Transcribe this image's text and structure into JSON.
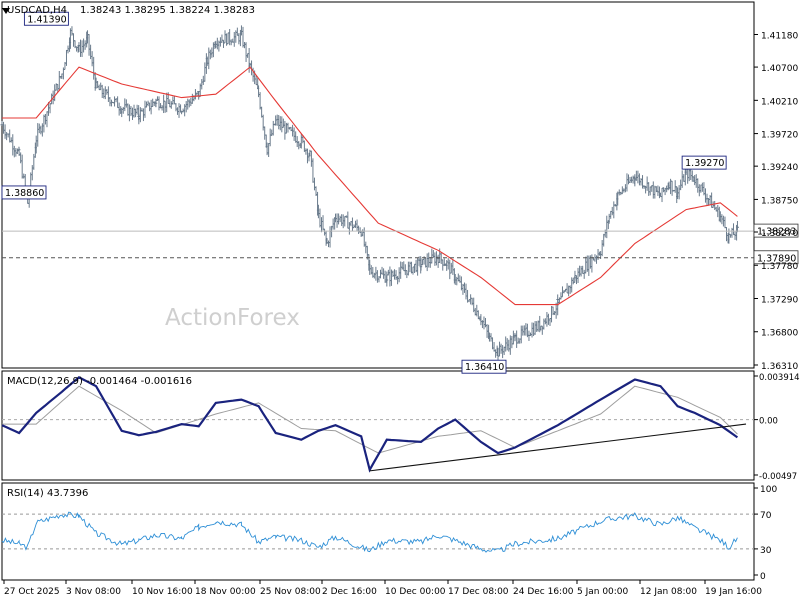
{
  "chart_data": [
    {
      "type": "candlestick-ohlc",
      "title": "USDCAD,H4",
      "ohlc_readout": {
        "open": "1.38243",
        "high": "1.38295",
        "low": "1.38224",
        "close": "1.38283"
      },
      "watermark": "ActionForex",
      "ylim": [
        1.3631,
        1.416
      ],
      "yticks": [
        "1.41180",
        "1.40700",
        "1.40210",
        "1.39720",
        "1.39240",
        "1.38750",
        "1.38270",
        "1.37780",
        "1.37290",
        "1.36800",
        "1.36310"
      ],
      "xticks": [
        "27 Oct 2025",
        "3 Nov 08:00",
        "10 Nov 16:00",
        "18 Nov 00:00",
        "25 Nov 08:00",
        "2 Dec 16:00",
        "10 Dec 00:00",
        "17 Dec 08:00",
        "24 Dec 16:00",
        "5 Jan 00:00",
        "12 Jan 08:00",
        "19 Jan 16:00"
      ],
      "series_keypoints": [
        [
          "27 Oct",
          1.3985
        ],
        [
          "29 Oct",
          1.394
        ],
        [
          "30 Oct",
          1.387
        ],
        [
          "31 Oct",
          1.3965
        ],
        [
          "3 Nov",
          1.406
        ],
        [
          "4 Nov",
          1.412
        ],
        [
          "5 Nov",
          1.4095
        ],
        [
          "6 Nov",
          1.411
        ],
        [
          "7 Nov",
          1.404
        ],
        [
          "10 Nov",
          1.401
        ],
        [
          "12 Nov",
          1.4
        ],
        [
          "14 Nov",
          1.402
        ],
        [
          "17 Nov",
          1.401
        ],
        [
          "19 Nov",
          1.403
        ],
        [
          "20 Nov",
          1.408
        ],
        [
          "21 Nov",
          1.411
        ],
        [
          "24 Nov",
          1.4115
        ],
        [
          "25 Nov",
          1.407
        ],
        [
          "26 Nov",
          1.403
        ],
        [
          "27 Nov",
          1.395
        ],
        [
          "28 Nov",
          1.399
        ],
        [
          "1 Dec",
          1.396
        ],
        [
          "2 Dec",
          1.394
        ],
        [
          "3 Dec",
          1.385
        ],
        [
          "4 Dec",
          1.381
        ],
        [
          "5 Dec",
          1.385
        ],
        [
          "8 Dec",
          1.383
        ],
        [
          "9 Dec",
          1.377
        ],
        [
          "11 Dec",
          1.376
        ],
        [
          "15 Dec",
          1.378
        ],
        [
          "17 Dec",
          1.379
        ],
        [
          "18 Dec",
          1.378
        ],
        [
          "19 Dec",
          1.376
        ],
        [
          "22 Dec",
          1.37
        ],
        [
          "23 Dec",
          1.367
        ],
        [
          "24 Dec",
          1.365
        ],
        [
          "26 Dec",
          1.367
        ],
        [
          "29 Dec",
          1.369
        ],
        [
          "31 Dec",
          1.372
        ],
        [
          "2 Jan",
          1.376
        ],
        [
          "5 Jan",
          1.38
        ],
        [
          "6 Jan",
          1.385
        ],
        [
          "7 Jan",
          1.388
        ],
        [
          "9 Jan",
          1.391
        ],
        [
          "12 Jan",
          1.388
        ],
        [
          "13 Jan",
          1.39
        ],
        [
          "14 Jan",
          1.3885
        ],
        [
          "15 Jan",
          1.3915
        ],
        [
          "16 Jan",
          1.3905
        ],
        [
          "19 Jan",
          1.385
        ],
        [
          "20 Jan",
          1.382
        ],
        [
          "21 Jan",
          1.3828
        ]
      ],
      "moving_average_keypoints": [
        [
          "27 Oct",
          1.3995
        ],
        [
          "31 Oct",
          1.3995
        ],
        [
          "5 Nov",
          1.407
        ],
        [
          "10 Nov",
          1.4045
        ],
        [
          "17 Nov",
          1.4025
        ],
        [
          "21 Nov",
          1.403
        ],
        [
          "25 Nov",
          1.407
        ],
        [
          "28 Nov",
          1.402
        ],
        [
          "3 Dec",
          1.394
        ],
        [
          "10 Dec",
          1.384
        ],
        [
          "17 Dec",
          1.38
        ],
        [
          "22 Dec",
          1.376
        ],
        [
          "26 Dec",
          1.372
        ],
        [
          "31 Dec",
          1.372
        ],
        [
          "5 Jan",
          1.376
        ],
        [
          "9 Jan",
          1.381
        ],
        [
          "15 Jan",
          1.386
        ],
        [
          "19 Jan",
          1.387
        ],
        [
          "21 Jan",
          1.385
        ]
      ],
      "price_labels": [
        {
          "label": "1.41390",
          "x": "4 Nov",
          "y": 1.4139
        },
        {
          "label": "1.38860",
          "x": "27 Oct",
          "y": 1.3886
        },
        {
          "label": "1.39270",
          "x": "15 Jan",
          "y": 1.3927
        },
        {
          "label": "1.36410",
          "x": "24 Dec",
          "y": 1.3641
        }
      ],
      "current_price": {
        "label": "1.38283",
        "value": 1.38283
      },
      "support_line": {
        "label": "1.37890",
        "value": 1.3789
      },
      "colors": {
        "bars": "#6a7b8c",
        "ma": "#e53935",
        "current_line": "#bbbbbb",
        "support": "#555555"
      }
    },
    {
      "type": "line",
      "title": "MACD(12,26,9) -0.001464 -0.001616",
      "ylim": [
        -0.00497,
        0.003914
      ],
      "yticks": [
        "0.003914",
        "0.00",
        "-0.00497"
      ],
      "macd_keypoints": [
        [
          "27 Oct",
          -0.0005
        ],
        [
          "29 Oct",
          -0.0012
        ],
        [
          "31 Oct",
          0.0006
        ],
        [
          "3 Nov",
          0.0025
        ],
        [
          "5 Nov",
          0.0038
        ],
        [
          "7 Nov",
          0.003
        ],
        [
          "10 Nov",
          -0.001
        ],
        [
          "12 Nov",
          -0.0014
        ],
        [
          "14 Nov",
          -0.0011
        ],
        [
          "17 Nov",
          -0.0004
        ],
        [
          "19 Nov",
          -0.0006
        ],
        [
          "21 Nov",
          0.0015
        ],
        [
          "24 Nov",
          0.0018
        ],
        [
          "26 Nov",
          0.0012
        ],
        [
          "28 Nov",
          -0.0012
        ],
        [
          "1 Dec",
          -0.0018
        ],
        [
          "3 Dec",
          -0.001
        ],
        [
          "5 Dec",
          -0.0005
        ],
        [
          "8 Dec",
          -0.0015
        ],
        [
          "9 Dec",
          -0.0045
        ],
        [
          "11 Dec",
          -0.0018
        ],
        [
          "15 Dec",
          -0.002
        ],
        [
          "17 Dec",
          -0.0008
        ],
        [
          "19 Dec",
          0.0
        ],
        [
          "22 Dec",
          -0.002
        ],
        [
          "24 Dec",
          -0.003
        ],
        [
          "26 Dec",
          -0.0025
        ],
        [
          "31 Dec",
          -0.0005
        ],
        [
          "5 Jan",
          0.0018
        ],
        [
          "9 Jan",
          0.0036
        ],
        [
          "12 Jan",
          0.003
        ],
        [
          "14 Jan",
          0.0012
        ],
        [
          "16 Jan",
          0.0006
        ],
        [
          "19 Jan",
          -0.0005
        ],
        [
          "21 Jan",
          -0.0016
        ]
      ],
      "signal_keypoints": [
        [
          "27 Oct",
          -0.0004
        ],
        [
          "31 Oct",
          -0.0004
        ],
        [
          "5 Nov",
          0.003
        ],
        [
          "10 Nov",
          0.0008
        ],
        [
          "14 Nov",
          -0.0012
        ],
        [
          "21 Nov",
          0.0005
        ],
        [
          "26 Nov",
          0.0015
        ],
        [
          "1 Dec",
          -0.0008
        ],
        [
          "5 Dec",
          -0.001
        ],
        [
          "10 Dec",
          -0.003
        ],
        [
          "17 Dec",
          -0.0015
        ],
        [
          "22 Dec",
          -0.001
        ],
        [
          "26 Dec",
          -0.0025
        ],
        [
          "5 Jan",
          0.0005
        ],
        [
          "9 Jan",
          0.003
        ],
        [
          "14 Jan",
          0.002
        ],
        [
          "19 Jan",
          0.0002
        ],
        [
          "21 Jan",
          -0.0013
        ]
      ],
      "trendline": [
        [
          "9 Dec",
          -0.0046
        ],
        [
          "22 Jan",
          -0.0004
        ]
      ],
      "colors": {
        "macd": "#1a237e",
        "signal": "#9e9e9e",
        "trendline": "#111111"
      }
    },
    {
      "type": "line",
      "title": "RSI(14) 43.7396",
      "ylim": [
        0,
        100
      ],
      "yticks": [
        "100",
        "70",
        "30",
        "0"
      ],
      "rsi_keypoints": [
        [
          "27 Oct",
          40
        ],
        [
          "29 Oct",
          36
        ],
        [
          "30 Oct",
          32
        ],
        [
          "31 Oct",
          60
        ],
        [
          "3 Nov",
          70
        ],
        [
          "5 Nov",
          68
        ],
        [
          "7 Nov",
          48
        ],
        [
          "10 Nov",
          35
        ],
        [
          "12 Nov",
          40
        ],
        [
          "14 Nov",
          46
        ],
        [
          "17 Nov",
          42
        ],
        [
          "19 Nov",
          55
        ],
        [
          "21 Nov",
          62
        ],
        [
          "24 Nov",
          58
        ],
        [
          "26 Nov",
          38
        ],
        [
          "28 Nov",
          44
        ],
        [
          "1 Dec",
          40
        ],
        [
          "3 Dec",
          32
        ],
        [
          "5 Dec",
          44
        ],
        [
          "9 Dec",
          28
        ],
        [
          "11 Dec",
          40
        ],
        [
          "15 Dec",
          38
        ],
        [
          "17 Dec",
          46
        ],
        [
          "19 Dec",
          40
        ],
        [
          "22 Dec",
          30
        ],
        [
          "24 Dec",
          27
        ],
        [
          "26 Dec",
          36
        ],
        [
          "31 Dec",
          42
        ],
        [
          "5 Jan",
          62
        ],
        [
          "7 Jan",
          66
        ],
        [
          "9 Jan",
          68
        ],
        [
          "12 Jan",
          58
        ],
        [
          "14 Jan",
          66
        ],
        [
          "16 Jan",
          54
        ],
        [
          "19 Jan",
          40
        ],
        [
          "20 Jan",
          32
        ],
        [
          "21 Jan",
          42
        ]
      ],
      "colors": {
        "rsi": "#2e8fd6",
        "levels": "#999999"
      }
    }
  ]
}
